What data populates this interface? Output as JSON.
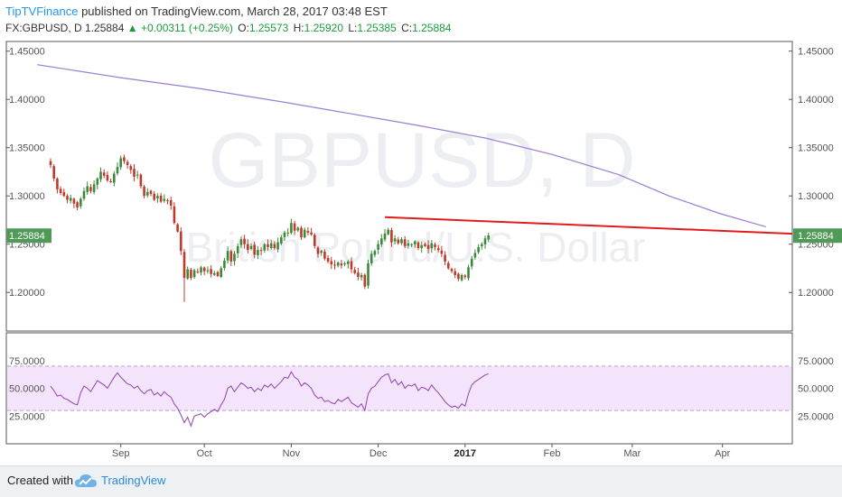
{
  "header": {
    "brand": "TipTVFinance",
    "published": "published on TradingView.com, March 28, 2017 03:48 EST",
    "symbol": "FX:GBPUSD, D",
    "last": "1.25884",
    "change": "+0.00311 (+0.25%)",
    "o_label": "O:",
    "o": "1.25573",
    "h_label": "H:",
    "h": "1.25920",
    "l_label": "L:",
    "l": "1.25385",
    "c_label": "C:",
    "c": "1.25884"
  },
  "watermark": {
    "title": "GBPUSD, D",
    "subtitle": "British Pound/U.S. Dollar"
  },
  "footer": {
    "created": "Created with",
    "brand": "TradingView"
  },
  "chart_data": [
    {
      "type": "candlestick",
      "symbol": "GBPUSD",
      "ylim": [
        1.16,
        1.46
      ],
      "yticks": [
        "1.45000",
        "1.40000",
        "1.35000",
        "1.30000",
        "1.25000",
        "1.20000"
      ],
      "xticks": [
        "Sep",
        "Oct",
        "Nov",
        "Dec",
        "2017",
        "Feb",
        "Mar",
        "Apr"
      ],
      "last_price_label": "1.25884",
      "colors": {
        "up": "#3a8a3a",
        "down": "#c0392b",
        "ma": "#9b7dd0",
        "trendline": "#e11b1b",
        "last_label_bg": "#4f9a56"
      },
      "close_path": [
        1.332,
        1.318,
        1.307,
        1.303,
        1.3,
        1.296,
        1.298,
        1.292,
        1.288,
        1.297,
        1.305,
        1.31,
        1.305,
        1.312,
        1.318,
        1.325,
        1.321,
        1.316,
        1.315,
        1.323,
        1.33,
        1.339,
        1.336,
        1.332,
        1.327,
        1.32,
        1.322,
        1.31,
        1.3,
        1.304,
        1.302,
        1.296,
        1.3,
        1.294,
        1.297,
        1.295,
        1.29,
        1.272,
        1.263,
        1.243,
        1.215,
        1.224,
        1.215,
        1.223,
        1.221,
        1.226,
        1.222,
        1.223,
        1.219,
        1.22,
        1.217,
        1.225,
        1.233,
        1.243,
        1.232,
        1.24,
        1.248,
        1.255,
        1.25,
        1.244,
        1.248,
        1.239,
        1.244,
        1.243,
        1.25,
        1.247,
        1.251,
        1.246,
        1.252,
        1.257,
        1.262,
        1.262,
        1.272,
        1.264,
        1.267,
        1.257,
        1.265,
        1.262,
        1.26,
        1.248,
        1.24,
        1.243,
        1.235,
        1.232,
        1.229,
        1.228,
        1.231,
        1.228,
        1.23,
        1.232,
        1.224,
        1.22,
        1.216,
        1.218,
        1.206,
        1.23,
        1.24,
        1.243,
        1.25,
        1.256,
        1.261,
        1.265,
        1.252,
        1.256,
        1.251,
        1.255,
        1.248,
        1.251,
        1.25,
        1.253,
        1.246,
        1.249,
        1.248,
        1.245,
        1.251,
        1.247,
        1.244,
        1.24,
        1.232,
        1.225,
        1.222,
        1.218,
        1.214,
        1.218,
        1.216,
        1.226,
        1.235,
        1.241,
        1.247,
        1.25,
        1.256,
        1.259
      ],
      "ma200": [
        [
          -4,
          1.436
        ],
        [
          20,
          1.423
        ],
        [
          45,
          1.411
        ],
        [
          70,
          1.397
        ],
        [
          90,
          1.385
        ],
        [
          110,
          1.373
        ],
        [
          130,
          1.36
        ],
        [
          150,
          1.343
        ],
        [
          170,
          1.322
        ],
        [
          185,
          1.3
        ],
        [
          200,
          1.282
        ],
        [
          210,
          1.272
        ],
        [
          214,
          1.268
        ]
      ],
      "trendline": [
        [
          100,
          1.278
        ],
        [
          228,
          1.26
        ]
      ],
      "dates_axis": {
        "Sep": 21,
        "Oct": 46,
        "Nov": 72,
        "Dec": 98,
        "2017": 124,
        "Feb": 150,
        "Mar": 174,
        "Apr": 201
      }
    },
    {
      "type": "line",
      "indicator": "RSI",
      "ylim": [
        0,
        100
      ],
      "yticks": [
        "75.0000",
        "50.0000",
        "25.0000"
      ],
      "band": [
        30,
        70
      ],
      "colors": {
        "line": "#8e44ad",
        "band": "#f3e4fb"
      },
      "values": [
        52,
        48,
        43,
        44,
        41,
        40,
        38,
        36,
        35,
        46,
        52,
        50,
        47,
        52,
        57,
        55,
        53,
        50,
        55,
        60,
        64,
        60,
        57,
        54,
        53,
        50,
        52,
        48,
        45,
        48,
        49,
        44,
        46,
        43,
        47,
        44,
        42,
        36,
        32,
        26,
        19,
        24,
        16,
        25,
        26,
        27,
        24,
        27,
        29,
        31,
        29,
        35,
        40,
        50,
        52,
        47,
        51,
        55,
        53,
        50,
        51,
        47,
        50,
        48,
        53,
        51,
        54,
        50,
        53,
        56,
        60,
        59,
        65,
        60,
        58,
        52,
        55,
        53,
        50,
        44,
        41,
        42,
        38,
        39,
        37,
        36,
        40,
        38,
        40,
        42,
        37,
        35,
        33,
        36,
        30,
        45,
        50,
        52,
        56,
        60,
        62,
        63,
        55,
        58,
        53,
        56,
        50,
        53,
        52,
        54,
        48,
        51,
        50,
        48,
        53,
        49,
        46,
        42,
        38,
        35,
        33,
        34,
        32,
        36,
        34,
        45,
        53,
        56,
        58,
        60,
        62,
        63
      ]
    }
  ]
}
